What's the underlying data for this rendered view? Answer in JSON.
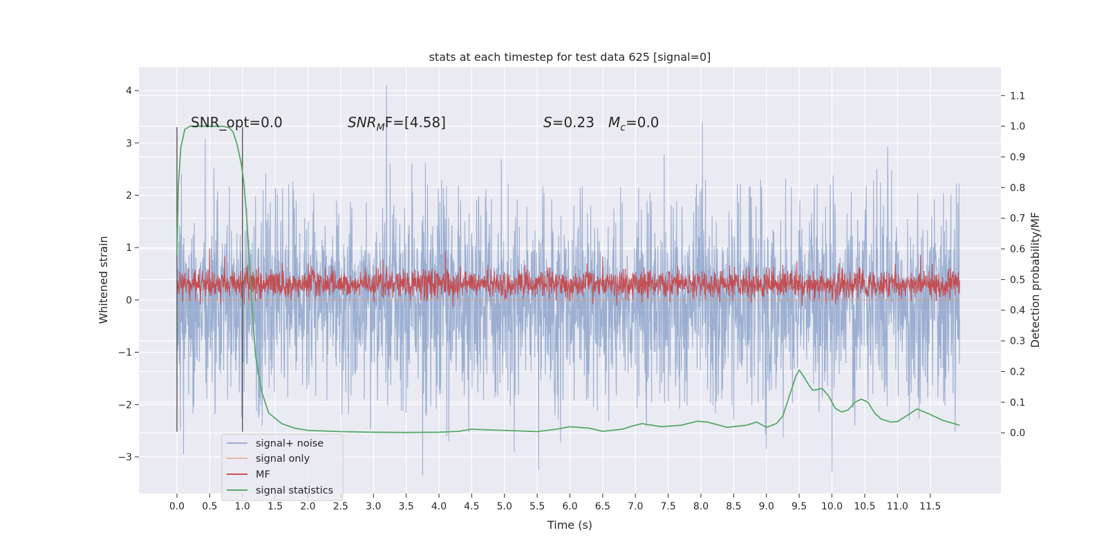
{
  "chart_data": {
    "type": "line",
    "title": "stats at each timestep for test data 625 [signal=0]",
    "xlabel": "Time (s)",
    "ylabel": "Whitened strain",
    "y2label": "Detection probability/MF",
    "xlim": [
      -0.58,
      12.58
    ],
    "ylim": [
      -3.7,
      4.45
    ],
    "y2lim": [
      -0.198,
      1.193
    ],
    "x_ticks": [
      "0.0",
      "0.5",
      "1.0",
      "1.5",
      "2.0",
      "2.5",
      "3.0",
      "3.5",
      "4.0",
      "4.5",
      "5.0",
      "5.5",
      "6.0",
      "6.5",
      "7.0",
      "7.5",
      "8.0",
      "8.5",
      "9.0",
      "9.5",
      "10.0",
      "10.5",
      "11.0",
      "11.5"
    ],
    "y_ticks": [
      "−3",
      "−2",
      "−1",
      "0",
      "1",
      "2",
      "3",
      "4"
    ],
    "y2_ticks": [
      "0.0",
      "0.1",
      "0.2",
      "0.3",
      "0.4",
      "0.5",
      "0.6",
      "0.7",
      "0.8",
      "0.9",
      "1.0",
      "1.1"
    ],
    "grid": true,
    "legend_placement": "lower-left",
    "vlines": [
      0.0,
      1.0
    ],
    "annotations": {
      "snr_opt": "SNR_opt=0.0",
      "snr_mf_main": "SNR",
      "snr_mf_sub": "M",
      "snr_mf_rest": "F=[4.58]",
      "s_main": "S",
      "s_rest": "=0.23",
      "mc_main": "M",
      "mc_sub": "c",
      "mc_rest": "=0.0"
    },
    "series": [
      {
        "name": "signal+ noise",
        "axis": "left",
        "color": "#4c72b0",
        "style": "noise",
        "x_range": [
          0.0,
          11.95
        ],
        "typical_range": [
          -1.4,
          1.4
        ],
        "peaks": [
          [
            0.05,
            -2.5
          ],
          [
            0.07,
            2.4
          ],
          [
            0.1,
            -2.95
          ],
          [
            0.43,
            3.08
          ],
          [
            1.3,
            -2.4
          ],
          [
            3.2,
            4.1
          ],
          [
            4.15,
            -2.7
          ],
          [
            5.15,
            -2.9
          ],
          [
            5.52,
            -3.25
          ],
          [
            8.5,
            -2.3
          ],
          [
            9.0,
            -2.85
          ],
          [
            10.0,
            -3.3
          ],
          [
            10.35,
            -2.4
          ],
          [
            10.85,
            2.92
          ],
          [
            11.9,
            2.22
          ]
        ]
      },
      {
        "name": "signal only",
        "axis": "left",
        "color": "#dd8452",
        "values": [
          0,
          0
        ]
      },
      {
        "name": "MF",
        "axis": "left",
        "color": "#c44e52",
        "style": "noise",
        "x_range": [
          0.0,
          11.95
        ],
        "typical_range": [
          0.05,
          0.55
        ],
        "peaks": [
          [
            0.5,
            0.98
          ],
          [
            4.1,
            0.93
          ],
          [
            6.5,
            0.83
          ],
          [
            11.35,
            0.86
          ]
        ]
      },
      {
        "name": "signal statistics",
        "axis": "right",
        "color": "#55a868",
        "x": [
          0.0,
          0.02,
          0.06,
          0.12,
          0.2,
          0.3,
          0.5,
          0.7,
          0.8,
          0.86,
          0.92,
          0.98,
          1.02,
          1.06,
          1.1,
          1.15,
          1.2,
          1.3,
          1.4,
          1.6,
          1.8,
          2.0,
          2.5,
          3.0,
          3.5,
          4.0,
          4.3,
          4.5,
          4.7,
          5.0,
          5.5,
          5.8,
          6.0,
          6.3,
          6.5,
          6.8,
          6.95,
          7.1,
          7.4,
          7.7,
          7.95,
          8.1,
          8.4,
          8.7,
          8.85,
          9.0,
          9.15,
          9.25,
          9.35,
          9.45,
          9.5,
          9.55,
          9.65,
          9.7,
          9.75,
          9.85,
          9.95,
          10.05,
          10.15,
          10.25,
          10.35,
          10.45,
          10.55,
          10.65,
          10.75,
          10.9,
          11.0,
          11.1,
          11.3,
          11.5,
          11.7,
          11.95
        ],
        "values": [
          0.58,
          0.8,
          0.93,
          0.99,
          1.0,
          1.0,
          1.0,
          1.0,
          0.995,
          0.98,
          0.94,
          0.88,
          0.82,
          0.72,
          0.58,
          0.4,
          0.25,
          0.13,
          0.065,
          0.03,
          0.015,
          0.008,
          0.004,
          0.002,
          0.001,
          0.002,
          0.005,
          0.012,
          0.01,
          0.008,
          0.004,
          0.012,
          0.02,
          0.015,
          0.005,
          0.012,
          0.022,
          0.03,
          0.02,
          0.025,
          0.038,
          0.035,
          0.018,
          0.025,
          0.035,
          0.018,
          0.03,
          0.055,
          0.12,
          0.185,
          0.205,
          0.19,
          0.155,
          0.14,
          0.14,
          0.145,
          0.12,
          0.08,
          0.068,
          0.075,
          0.1,
          0.11,
          0.1,
          0.065,
          0.045,
          0.035,
          0.037,
          0.05,
          0.078,
          0.06,
          0.04,
          0.025
        ]
      }
    ]
  }
}
